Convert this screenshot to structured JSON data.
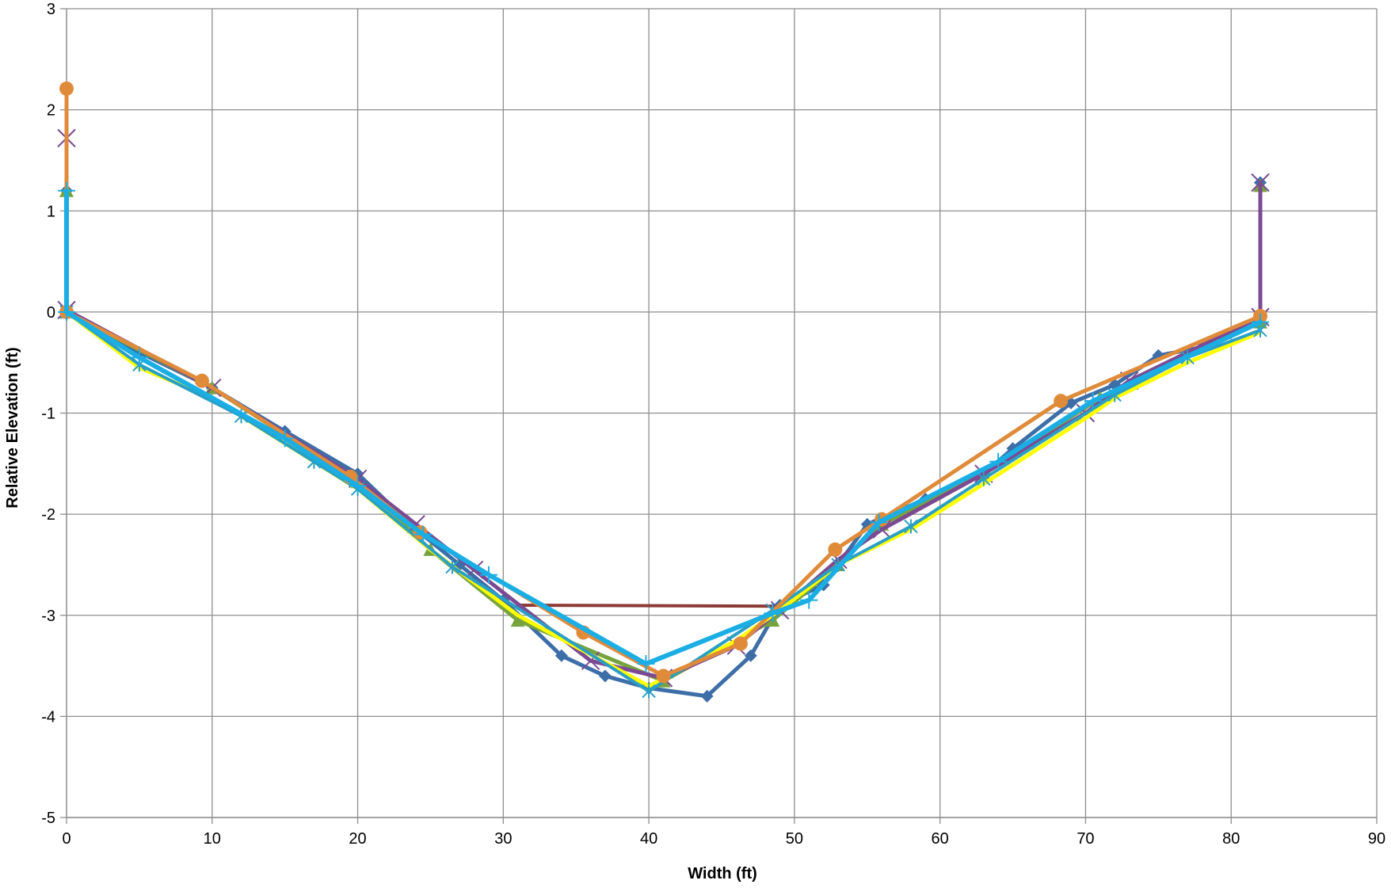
{
  "chart_data": {
    "type": "line",
    "title": "",
    "xlabel": "Width (ft)",
    "ylabel": "Relative Elevation  (ft)",
    "xlim": [
      0,
      90
    ],
    "ylim": [
      -5,
      3
    ],
    "x_ticks": [
      "0",
      "10",
      "20",
      "30",
      "40",
      "50",
      "60",
      "70",
      "80",
      "90"
    ],
    "y_ticks": [
      "3",
      "2",
      "1",
      "0",
      "-1",
      "-2",
      "-3",
      "-4",
      "-5"
    ],
    "grid": true,
    "legend": "none",
    "series": [
      {
        "color": "#8c3a36",
        "marker": "none",
        "points": [
          [
            31,
            -2.9
          ],
          [
            49,
            -2.91
          ]
        ]
      },
      {
        "color": "#3d6ea8",
        "marker": "diamond",
        "points": [
          [
            0,
            1.2
          ],
          [
            0,
            0
          ],
          [
            5,
            -0.4
          ],
          [
            10,
            -0.75
          ],
          [
            15,
            -1.18
          ],
          [
            20,
            -1.6
          ],
          [
            24,
            -2.15
          ],
          [
            27,
            -2.5
          ],
          [
            30,
            -2.85
          ],
          [
            34,
            -3.4
          ],
          [
            37,
            -3.6
          ],
          [
            40,
            -3.72
          ],
          [
            44,
            -3.8
          ],
          [
            47,
            -3.4
          ],
          [
            49,
            -2.9
          ],
          [
            52,
            -2.7
          ],
          [
            55,
            -2.1
          ],
          [
            59,
            -1.85
          ],
          [
            63,
            -1.6
          ],
          [
            65,
            -1.35
          ],
          [
            69,
            -0.9
          ],
          [
            72,
            -0.72
          ],
          [
            75,
            -0.43
          ],
          [
            78,
            -0.35
          ],
          [
            82,
            -0.1
          ],
          [
            82,
            1.28
          ]
        ]
      },
      {
        "color": "#76a33e",
        "marker": "triangle",
        "points": [
          [
            0,
            1.2
          ],
          [
            0,
            0
          ],
          [
            10,
            -0.75
          ],
          [
            20,
            -1.68
          ],
          [
            25,
            -2.35
          ],
          [
            31,
            -3.05
          ],
          [
            41,
            -3.65
          ],
          [
            48.5,
            -3.05
          ],
          [
            53,
            -2.5
          ],
          [
            56,
            -2.1
          ],
          [
            63,
            -1.6
          ],
          [
            71,
            -0.85
          ],
          [
            82,
            -0.1
          ],
          [
            82,
            1.25
          ]
        ]
      },
      {
        "color": "#7b4a93",
        "marker": "x",
        "points": [
          [
            0,
            1.72
          ],
          [
            0,
            0.02
          ],
          [
            10,
            -0.75
          ],
          [
            20,
            -1.65
          ],
          [
            24,
            -2.1
          ],
          [
            28,
            -2.55
          ],
          [
            36,
            -3.45
          ],
          [
            41,
            -3.62
          ],
          [
            46,
            -3.3
          ],
          [
            49,
            -2.95
          ],
          [
            53,
            -2.45
          ],
          [
            56,
            -2.15
          ],
          [
            63,
            -1.6
          ],
          [
            70,
            -1.0
          ],
          [
            73,
            -0.68
          ],
          [
            82,
            -0.05
          ],
          [
            82,
            1.28
          ]
        ]
      },
      {
        "color": "#ffff00",
        "marker": "none",
        "points": [
          [
            0,
            0
          ],
          [
            5,
            -0.55
          ],
          [
            10,
            -0.85
          ],
          [
            20,
            -1.75
          ],
          [
            25,
            -2.35
          ],
          [
            31,
            -3.0
          ],
          [
            40,
            -3.7
          ],
          [
            46,
            -3.25
          ],
          [
            49,
            -2.95
          ],
          [
            53,
            -2.5
          ],
          [
            58,
            -2.15
          ],
          [
            63,
            -1.7
          ],
          [
            70,
            -1.05
          ],
          [
            72,
            -0.85
          ],
          [
            77,
            -0.5
          ],
          [
            82,
            -0.2
          ]
        ]
      },
      {
        "color": "#2a9fc5",
        "marker": "asterisk",
        "points": [
          [
            0,
            0
          ],
          [
            5,
            -0.52
          ],
          [
            12,
            -1.03
          ],
          [
            17,
            -1.48
          ],
          [
            20,
            -1.75
          ],
          [
            26.5,
            -2.52
          ],
          [
            40,
            -3.75
          ],
          [
            48.5,
            -2.95
          ],
          [
            53,
            -2.5
          ],
          [
            58,
            -2.12
          ],
          [
            63,
            -1.65
          ],
          [
            72,
            -0.82
          ],
          [
            77,
            -0.45
          ],
          [
            82,
            -0.18
          ]
        ]
      },
      {
        "color": "#e08b3a",
        "marker": "circle",
        "points": [
          [
            0,
            2.21
          ],
          [
            0,
            0
          ],
          [
            9.3,
            -0.68
          ],
          [
            19.5,
            -1.63
          ],
          [
            24.3,
            -2.18
          ],
          [
            35.5,
            -3.17
          ],
          [
            41,
            -3.6
          ],
          [
            46.3,
            -3.28
          ],
          [
            52.8,
            -2.35
          ],
          [
            56,
            -2.05
          ],
          [
            68.3,
            -0.88
          ],
          [
            82,
            -0.04
          ]
        ]
      },
      {
        "color": "#1aaee5",
        "marker": "plus",
        "points": [
          [
            0,
            1.2
          ],
          [
            0,
            0
          ],
          [
            5,
            -0.45
          ],
          [
            15,
            -1.25
          ],
          [
            20,
            -1.72
          ],
          [
            24.5,
            -2.2
          ],
          [
            29,
            -2.6
          ],
          [
            39.8,
            -3.48
          ],
          [
            48.5,
            -2.98
          ],
          [
            51,
            -2.85
          ],
          [
            55.8,
            -2.08
          ],
          [
            64,
            -1.48
          ],
          [
            70.5,
            -0.88
          ],
          [
            82,
            -0.1
          ]
        ]
      }
    ]
  }
}
